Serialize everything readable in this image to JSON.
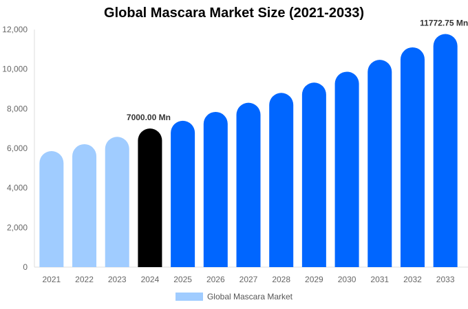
{
  "chart_data": {
    "type": "bar",
    "title": "Global Mascara Market Size (2021-2033)",
    "categories": [
      "2021",
      "2022",
      "2023",
      "2024",
      "2025",
      "2026",
      "2027",
      "2028",
      "2029",
      "2030",
      "2031",
      "2032",
      "2033"
    ],
    "series": [
      {
        "name": "Global Mascara Market",
        "values": [
          5860,
          6210,
          6580,
          7000,
          7390,
          7840,
          8300,
          8800,
          9320,
          9870,
          10470,
          11100,
          11772.75
        ]
      }
    ],
    "bar_colors": [
      "#a0ccff",
      "#a0ccff",
      "#a0ccff",
      "#000000",
      "#0066ff",
      "#0066ff",
      "#0066ff",
      "#0066ff",
      "#0066ff",
      "#0066ff",
      "#0066ff",
      "#0066ff",
      "#0066ff"
    ],
    "data_labels": [
      {
        "category": "2024",
        "text": "7000.00 Mn"
      },
      {
        "category": "2033",
        "text": "11772.75 Mn"
      }
    ],
    "yticks": [
      "0",
      "2,000",
      "4,000",
      "6,000",
      "8,000",
      "10,000",
      "12,000"
    ],
    "ylim": [
      0,
      12000
    ],
    "grid": false,
    "legend": "bottom",
    "legend_label": "Global Mascara Market"
  }
}
